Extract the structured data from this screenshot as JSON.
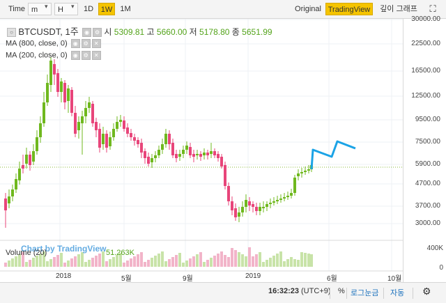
{
  "toolbar": {
    "time_label": "Time",
    "interval_minute": "m",
    "interval_hour": "H",
    "interval_day": "1D",
    "interval_week": "1W",
    "interval_month": "1M",
    "view_original": "Original",
    "view_tradingview": "TradingView",
    "view_depth": "깊이 그래프",
    "selected_interval": "1W",
    "selected_view": "TradingView"
  },
  "legend": {
    "symbol": "BTCUSDT, 1주",
    "open_label": "시",
    "open_value": "5309.81",
    "high_label": "고",
    "high_value": "5660.00",
    "low_label": "저",
    "low_value": "5178.80",
    "close_label": "종",
    "close_value": "5651.99",
    "ma1": "MA (800, close, 0)",
    "ma2": "MA (200, close, 0)"
  },
  "price_axis": {
    "ticks": [
      "30000.00",
      "22500.00",
      "16500.00",
      "12500.00",
      "9500.00",
      "7500.00",
      "5900.00",
      "4700.00",
      "3700.00",
      "3000.00"
    ]
  },
  "volume": {
    "label": "Volume (20)",
    "value": "51.263K",
    "axis_top": "400K",
    "axis_bottom": "0",
    "watermark": "Chart by TradingView"
  },
  "time_axis": {
    "labels": [
      "2018",
      "5월",
      "9월",
      "2019",
      "6월",
      "10월"
    ]
  },
  "statusbar": {
    "clock": "16:32:23",
    "timezone": "(UTC+9)",
    "percent": "%",
    "log": "로그눈금",
    "auto": "자동"
  },
  "colors": {
    "up": "#6fb81e",
    "down": "#e8457a",
    "volume_up": "#c8e3a8",
    "volume_down": "#f2b4c9",
    "drawing": "#1ba3e6",
    "accent": "#f5c400"
  },
  "icons": {
    "settings": "gear-icon",
    "pan": "scroll-arrow-icon"
  }
}
